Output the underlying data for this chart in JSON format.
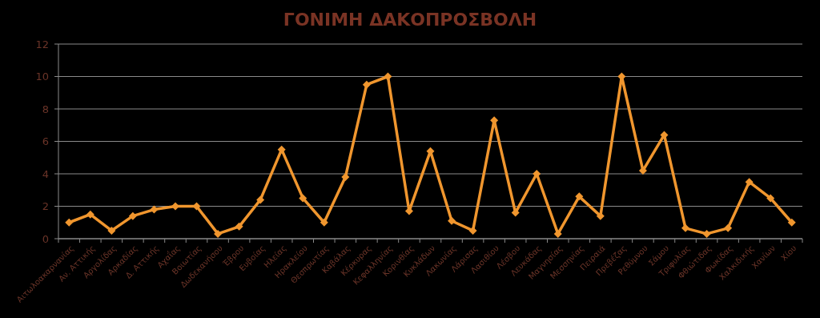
{
  "chart_data": {
    "type": "line",
    "title": "ΓΟΝΙΜΗ ΔΑΚΟΠΡΟΣΒΟΛΗ",
    "categories": [
      "Αιτωλοακαρνανίας",
      "Αν. Αττικής",
      "Αργολίδας",
      "Αρκαδίας",
      "Δ. Αττικής",
      "Αχαΐας",
      "Βοιωτίας",
      "Δωδεκανήσου",
      "Έβρου",
      "Ευβοίας",
      "Ηλείας",
      "Ηρακλείου",
      "Θεσπρωτίας",
      "Καβάλας",
      "Κέρκυρας",
      "Κεφαλληνίας",
      "Κορινθίας",
      "Κυκλάδων",
      "Λακωνίας",
      "Λάρισας",
      "Λασιθίου",
      "Λέσβου",
      "Λευκάδας",
      "Μαγνησίας",
      "Μεσσηνίας",
      "Πειραιά",
      "Πρεβέζας",
      "Ρεθύμνου",
      "Σάμου",
      "Τριφυλίας",
      "Φθιώτιδας",
      "Φωκίδας",
      "Χαλκιδικής",
      "Χανίων",
      "Χίου"
    ],
    "series": [
      {
        "color": "#f0962e",
        "values": [
          1.0,
          1.5,
          0.5,
          1.4,
          1.8,
          2.0,
          2.0,
          0.3,
          0.75,
          2.4,
          5.5,
          2.5,
          1.0,
          3.8,
          9.5,
          10,
          1.7,
          5.4,
          1.1,
          0.5,
          7.3,
          1.6,
          4.0,
          0.3,
          2.6,
          1.4,
          10,
          4.2,
          6.4,
          0.65,
          0.3,
          0.65,
          3.5,
          2.5,
          1.0
        ]
      }
    ],
    "ylim": [
      0,
      12
    ],
    "yticks": [
      0,
      2,
      4,
      6,
      8,
      10,
      12
    ],
    "grid": "y",
    "marker": "diamond",
    "line_style": "solid"
  }
}
